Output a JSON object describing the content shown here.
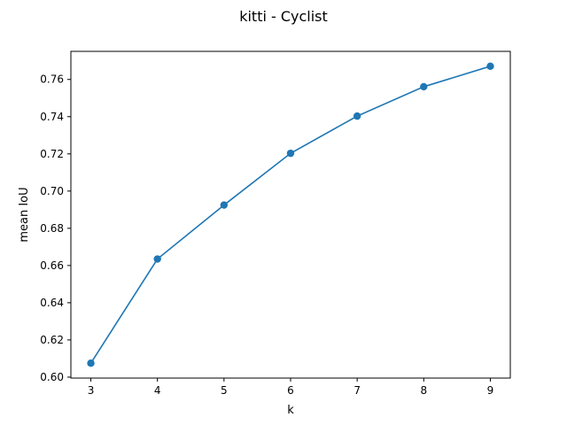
{
  "chart_data": {
    "type": "line",
    "title": "kitti - Cyclist",
    "xlabel": "k",
    "ylabel": "mean IoU",
    "x": [
      3,
      4,
      5,
      6,
      7,
      8,
      9
    ],
    "series": [
      {
        "values": [
          0.6075,
          0.6635,
          0.6925,
          0.7203,
          0.7403,
          0.7561,
          0.7671
        ],
        "color": "#1f77b4",
        "marker": "circle"
      }
    ],
    "xlim": [
      2.7,
      9.3
    ],
    "ylim": [
      0.5995,
      0.7751
    ],
    "xticks": [
      "3",
      "4",
      "5",
      "6",
      "7",
      "8",
      "9"
    ],
    "yticks": [
      "0.60",
      "0.62",
      "0.64",
      "0.66",
      "0.68",
      "0.70",
      "0.72",
      "0.74",
      "0.76"
    ],
    "grid": false,
    "legend": "none"
  }
}
